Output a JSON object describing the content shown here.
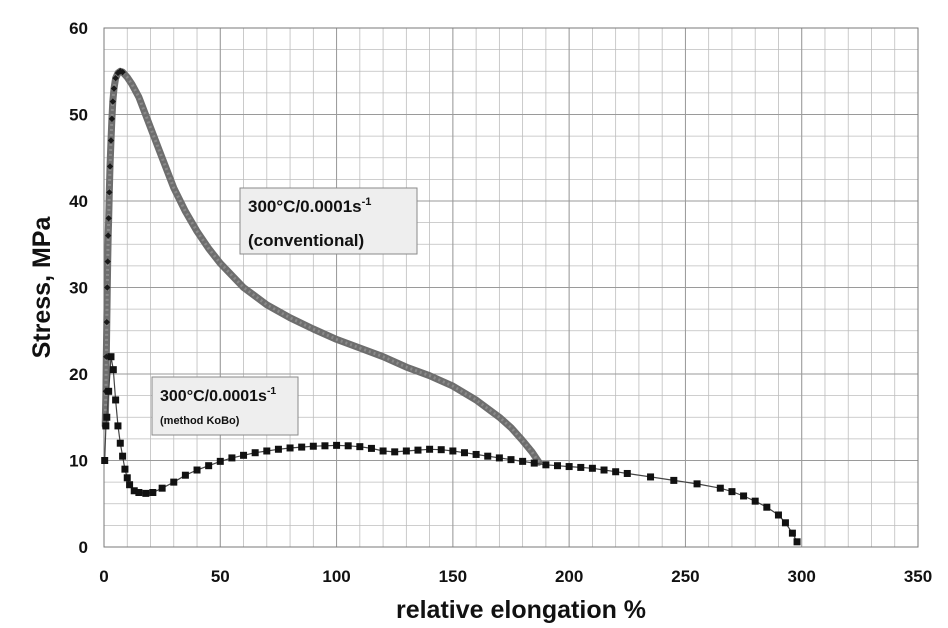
{
  "chart_data": {
    "type": "scatter",
    "title": "",
    "xlabel": "relative elongation %",
    "ylabel": "Stress, MPa",
    "xlim": [
      0,
      350
    ],
    "ylim": [
      0,
      60
    ],
    "x_ticks": [
      0,
      50,
      100,
      150,
      200,
      250,
      300,
      350
    ],
    "y_ticks": [
      0,
      10,
      20,
      30,
      40,
      50,
      60
    ],
    "x_minor_step": 10,
    "y_minor_step": 2.5,
    "grid": true,
    "legend": "none",
    "colors": {
      "conventional": "#6e6e6e",
      "conventional_marker": "#1a1a1a",
      "kobo": "#111111",
      "grid": "#bdbdbd",
      "annotation_bg": "#eeeeee",
      "annotation_border": "#8a8a8a"
    },
    "annotations": [
      {
        "id": "conventional",
        "line1": "300°C/0.0001s",
        "sup": "-1",
        "line2": "(conventional)"
      },
      {
        "id": "kobo",
        "line1": "300°C/0.0001s",
        "sup": "-1",
        "line2": "(method KoBo)"
      }
    ],
    "series": [
      {
        "id": "conventional",
        "points": [
          [
            0.5,
            14
          ],
          [
            0.8,
            18
          ],
          [
            1.0,
            22
          ],
          [
            1.2,
            26
          ],
          [
            1.4,
            30
          ],
          [
            1.6,
            33
          ],
          [
            1.8,
            36
          ],
          [
            2.0,
            38
          ],
          [
            2.3,
            41
          ],
          [
            2.6,
            44
          ],
          [
            3.0,
            47
          ],
          [
            3.4,
            49.5
          ],
          [
            3.8,
            51.5
          ],
          [
            4.3,
            53
          ],
          [
            5.0,
            54.2
          ],
          [
            6.0,
            54.8
          ],
          [
            7.0,
            55.0
          ],
          [
            8.0,
            54.9
          ],
          [
            10.0,
            54.3
          ],
          [
            12.0,
            53.5
          ],
          [
            15.0,
            52.0
          ],
          [
            20.0,
            48.5
          ],
          [
            25.0,
            45.0
          ],
          [
            30.0,
            41.5
          ],
          [
            35.0,
            38.8
          ],
          [
            40.0,
            36.5
          ],
          [
            45.0,
            34.5
          ],
          [
            50.0,
            32.8
          ],
          [
            60.0,
            30.0
          ],
          [
            70.0,
            28.0
          ],
          [
            80.0,
            26.5
          ],
          [
            90.0,
            25.2
          ],
          [
            100.0,
            24.0
          ],
          [
            110.0,
            23.0
          ],
          [
            120.0,
            22.0
          ],
          [
            130.0,
            20.8
          ],
          [
            140.0,
            19.8
          ],
          [
            150.0,
            18.6
          ],
          [
            160.0,
            17.0
          ],
          [
            170.0,
            15.0
          ],
          [
            175.0,
            13.8
          ],
          [
            180.0,
            12.3
          ],
          [
            184.0,
            11.0
          ],
          [
            187.0,
            9.8
          ]
        ]
      },
      {
        "id": "kobo",
        "points": [
          [
            0.3,
            10
          ],
          [
            0.8,
            14
          ],
          [
            1.2,
            15
          ],
          [
            2.0,
            18
          ],
          [
            3.0,
            22
          ],
          [
            4.0,
            20.5
          ],
          [
            5.0,
            17
          ],
          [
            6.0,
            14
          ],
          [
            7.0,
            12
          ],
          [
            8.0,
            10.5
          ],
          [
            9.0,
            9
          ],
          [
            10.0,
            8
          ],
          [
            11.0,
            7.2
          ],
          [
            13.0,
            6.5
          ],
          [
            15.0,
            6.3
          ],
          [
            18.0,
            6.2
          ],
          [
            21.0,
            6.3
          ],
          [
            25.0,
            6.8
          ],
          [
            30.0,
            7.5
          ],
          [
            35.0,
            8.3
          ],
          [
            40.0,
            8.9
          ],
          [
            45.0,
            9.4
          ],
          [
            50.0,
            9.9
          ],
          [
            55.0,
            10.3
          ],
          [
            60.0,
            10.6
          ],
          [
            65.0,
            10.9
          ],
          [
            70.0,
            11.1
          ],
          [
            75.0,
            11.3
          ],
          [
            80.0,
            11.45
          ],
          [
            85.0,
            11.55
          ],
          [
            90.0,
            11.65
          ],
          [
            95.0,
            11.7
          ],
          [
            100.0,
            11.75
          ],
          [
            105.0,
            11.7
          ],
          [
            110.0,
            11.6
          ],
          [
            115.0,
            11.4
          ],
          [
            120.0,
            11.1
          ],
          [
            125.0,
            11.0
          ],
          [
            130.0,
            11.1
          ],
          [
            135.0,
            11.2
          ],
          [
            140.0,
            11.3
          ],
          [
            145.0,
            11.25
          ],
          [
            150.0,
            11.1
          ],
          [
            155.0,
            10.9
          ],
          [
            160.0,
            10.7
          ],
          [
            165.0,
            10.5
          ],
          [
            170.0,
            10.3
          ],
          [
            175.0,
            10.1
          ],
          [
            180.0,
            9.9
          ],
          [
            185.0,
            9.7
          ],
          [
            190.0,
            9.5
          ],
          [
            195.0,
            9.4
          ],
          [
            200.0,
            9.3
          ],
          [
            205.0,
            9.2
          ],
          [
            210.0,
            9.1
          ],
          [
            215.0,
            8.9
          ],
          [
            220.0,
            8.7
          ],
          [
            225.0,
            8.5
          ],
          [
            235.0,
            8.1
          ],
          [
            245.0,
            7.7
          ],
          [
            255.0,
            7.3
          ],
          [
            265.0,
            6.8
          ],
          [
            270.0,
            6.4
          ],
          [
            275.0,
            5.9
          ],
          [
            280.0,
            5.3
          ],
          [
            285.0,
            4.6
          ],
          [
            290.0,
            3.7
          ],
          [
            293.0,
            2.8
          ],
          [
            296.0,
            1.6
          ],
          [
            298.0,
            0.6
          ]
        ]
      }
    ]
  }
}
